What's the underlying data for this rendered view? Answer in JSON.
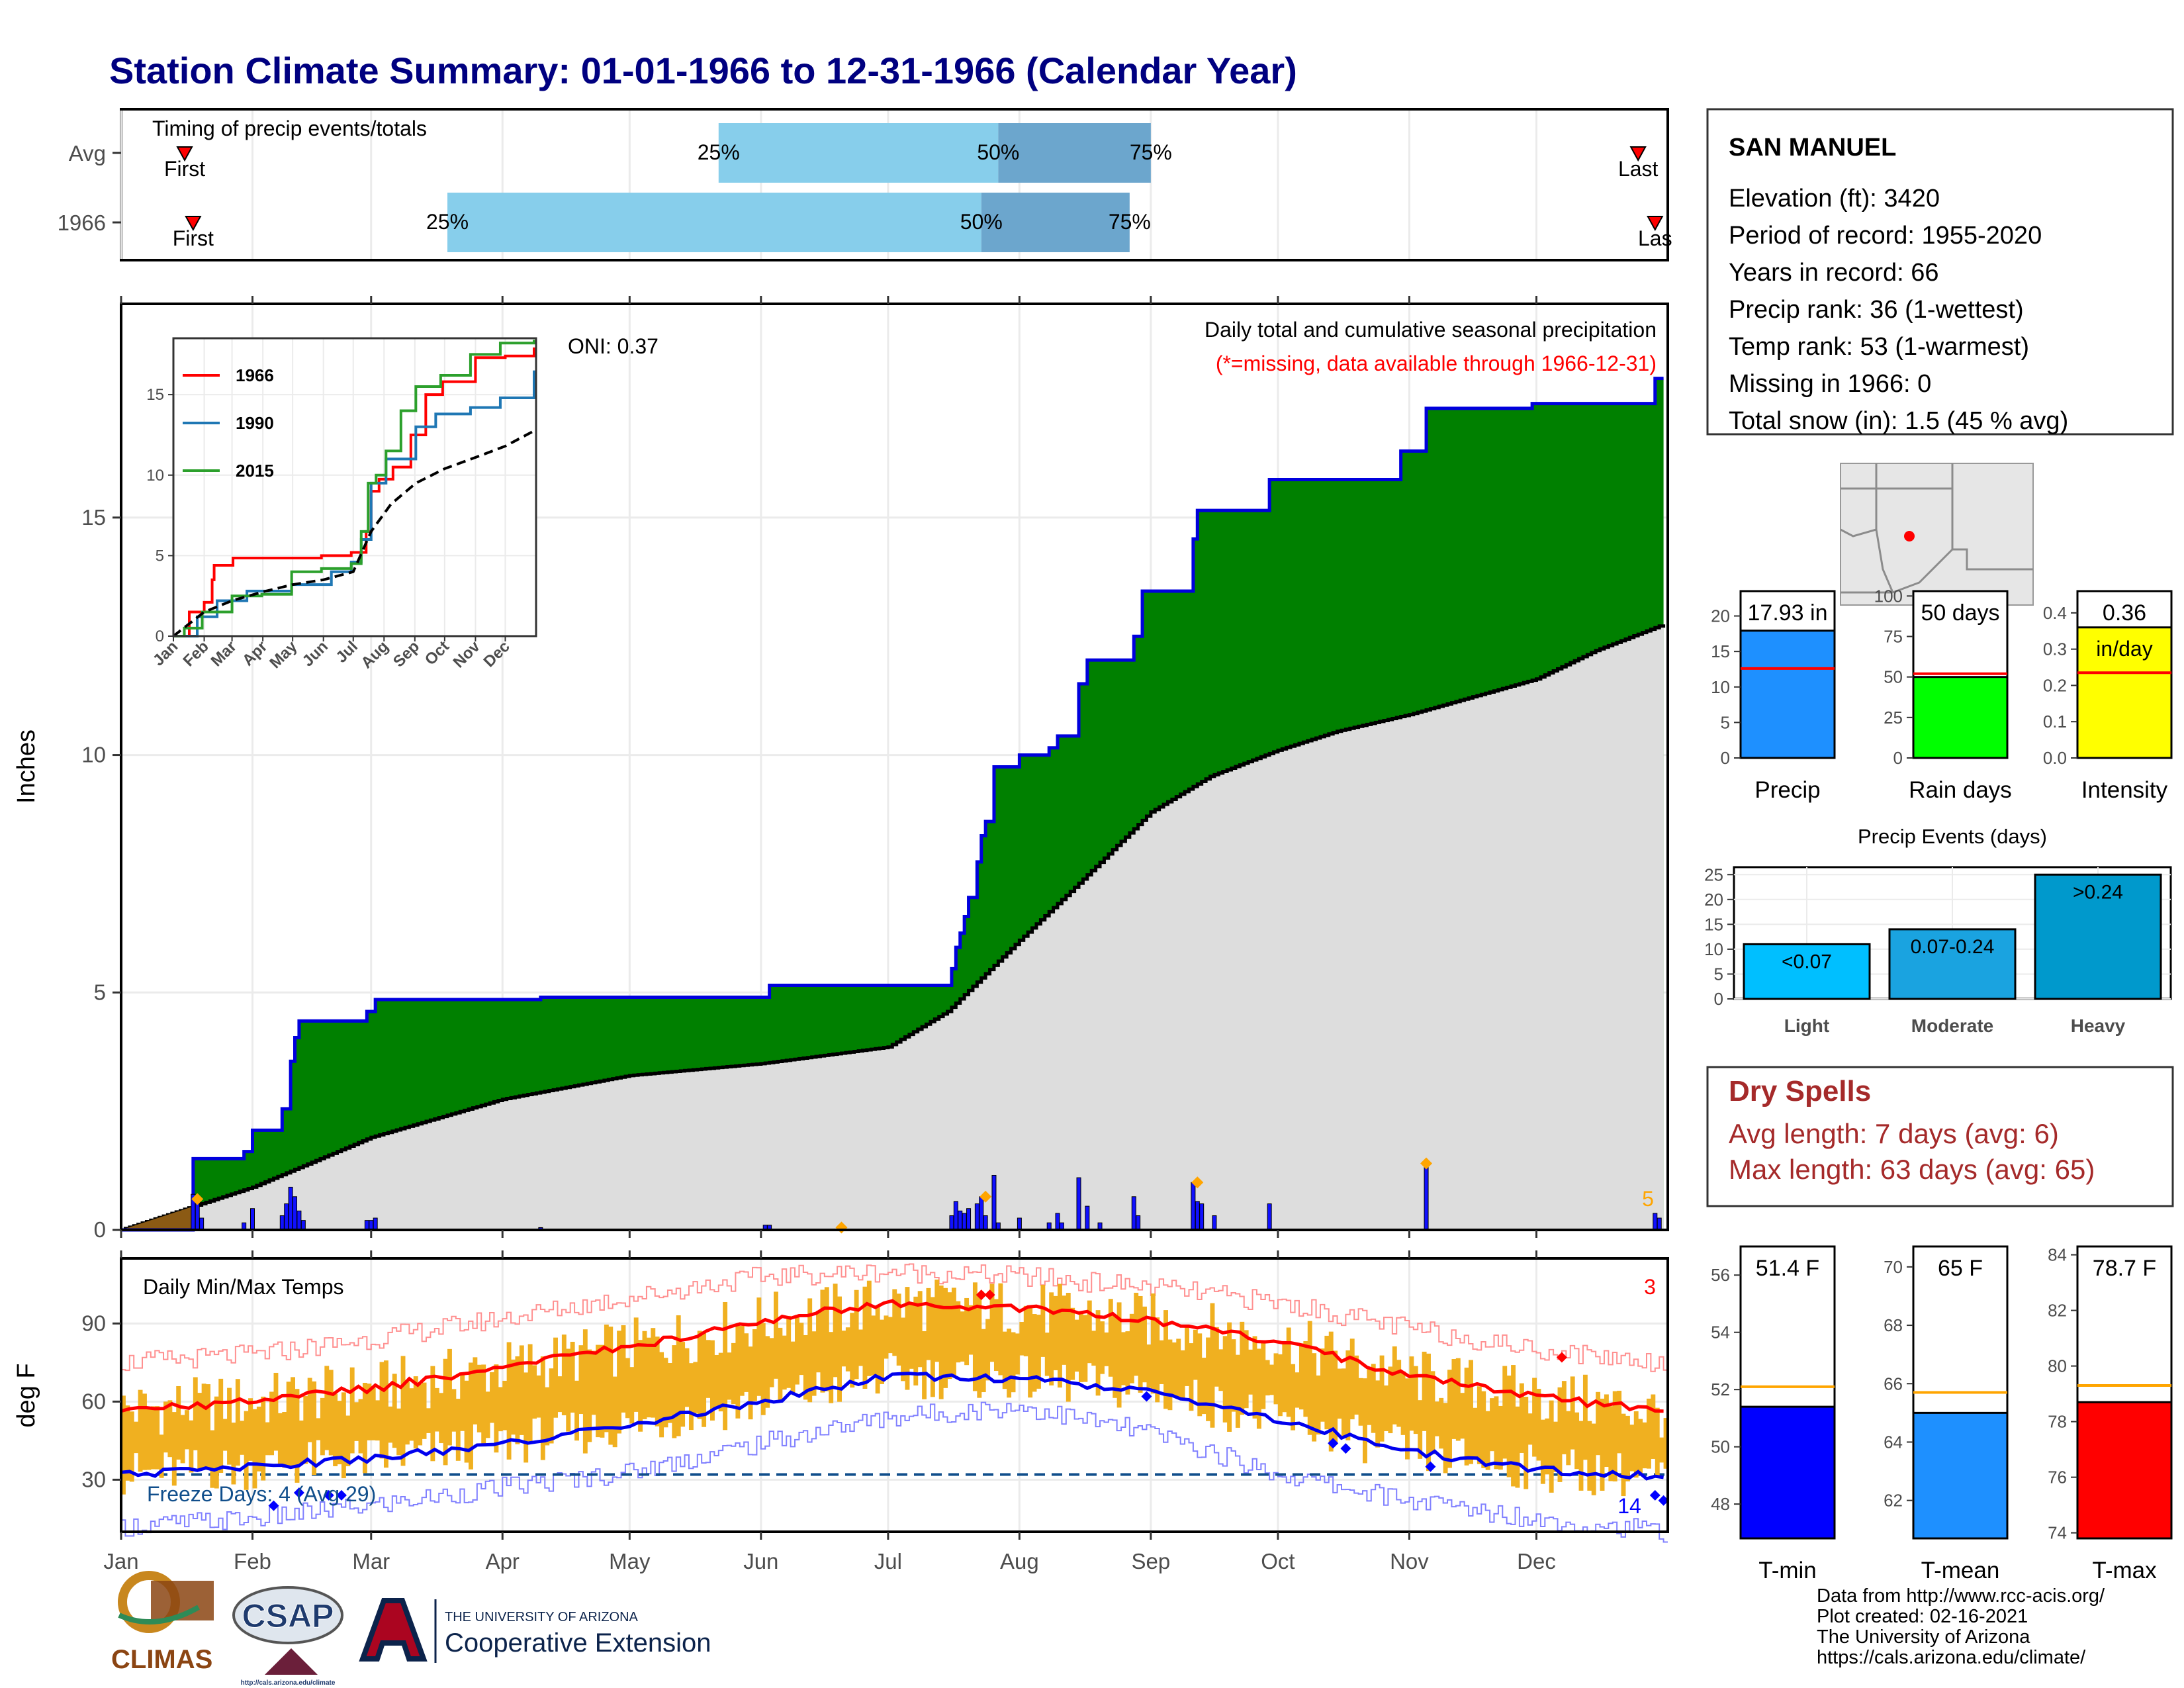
{
  "page": {
    "title": "Station Climate Summary: 01-01-1966 to 12-31-1966 (Calendar Year)",
    "months": [
      "Jan",
      "Feb",
      "Mar",
      "Apr",
      "May",
      "Jun",
      "Jul",
      "Aug",
      "Sep",
      "Oct",
      "Nov",
      "Dec"
    ],
    "footer": [
      "Data from http://www.rcc-acis.org/",
      "Plot created: 02-16-2021",
      "The University of Arizona",
      "https://cals.arizona.edu/climate/"
    ],
    "logos": {
      "climas": "CLIMAS",
      "csap": "CSAP",
      "csap_url": "http://cals.arizona.edu/climate",
      "ua_line1": "THE UNIVERSITY OF ARIZONA",
      "ua_line2": "Cooperative Extension"
    }
  },
  "station": {
    "name": "SAN MANUEL",
    "lines": [
      "Elevation (ft): 3420",
      "Period of record: 1955-2020",
      "Years in record: 66",
      "Precip rank: 36 (1-wettest)",
      "Temp rank: 53 (1-warmest)",
      "Missing in 1966: 0",
      "Total snow (in): 1.5 (45 % avg)"
    ]
  },
  "dry_spells": {
    "title": "Dry Spells",
    "avg_length": "Avg length: 7 days (avg: 6)",
    "max_length": "Max length: 63 days (avg: 65)"
  },
  "colors": {
    "title": "#000080",
    "observed_fill": "#008000",
    "observed_line": "#0000dd",
    "climo_fill": "#dddddd",
    "daily_bars": "#1010ff",
    "temp_bars": "#f0b020",
    "tmax_line": "#ff0000",
    "tmin_line": "#0000ee",
    "timing_light": "#87ceeb",
    "timing_dark": "#6ca6cd",
    "dry_spell": "#a52a2a",
    "orange": "#ffa500"
  },
  "chart_data": [
    {
      "id": "timing",
      "type": "bar",
      "title": "Timing of precip events/totals",
      "categories": [
        "Avg",
        "1966"
      ],
      "rows": [
        {
          "label": "Avg",
          "first": "Jan 16",
          "p25": "May 22",
          "p50": "Jul 27",
          "p75": "Sep 01",
          "last": "Dec 25",
          "first_label": "First",
          "last_label": "Last"
        },
        {
          "label": "1966",
          "first": "Jan 18",
          "p25": "Mar 19",
          "p50": "Jul 23",
          "p75": "Aug 27",
          "last": "Dec 29",
          "first_label": "First",
          "last_label": "Las"
        }
      ],
      "percent_labels": [
        "25%",
        "50%",
        "75%"
      ]
    },
    {
      "id": "precip",
      "type": "area",
      "title": "Daily total and cumulative seasonal precipitation",
      "subtitle": "(*=missing, data available through 1966-12-31)",
      "oni": "ONI: 0.37",
      "ylabel": "Inches",
      "ylim": [
        0,
        19.5
      ],
      "yticks": [
        0,
        5,
        10,
        15
      ],
      "annotation_count": "5",
      "cumulative_1966_steps": [
        [
          "Jan 01",
          0
        ],
        [
          "Jan 18",
          1.5
        ],
        [
          "Jan 30",
          1.65
        ],
        [
          "Feb 01",
          2.1
        ],
        [
          "Feb 08",
          2.55
        ],
        [
          "Feb 10",
          3.55
        ],
        [
          "Feb 11",
          4.05
        ],
        [
          "Feb 12",
          4.4
        ],
        [
          "Feb 28",
          4.6
        ],
        [
          "Mar 02",
          4.85
        ],
        [
          "Apr 10",
          4.9
        ],
        [
          "Jun 03",
          5.15
        ],
        [
          "Jul 16",
          5.5
        ],
        [
          "Jul 17",
          5.95
        ],
        [
          "Jul 18",
          6.25
        ],
        [
          "Jul 19",
          6.6
        ],
        [
          "Jul 20",
          7.0
        ],
        [
          "Jul 22",
          7.75
        ],
        [
          "Jul 23",
          8.3
        ],
        [
          "Jul 24",
          8.6
        ],
        [
          "Jul 26",
          9.75
        ],
        [
          "Aug 01",
          10.0
        ],
        [
          "Aug 08",
          10.15
        ],
        [
          "Aug 10",
          10.4
        ],
        [
          "Aug 15",
          11.5
        ],
        [
          "Aug 17",
          12.0
        ],
        [
          "Aug 28",
          12.5
        ],
        [
          "Aug 30",
          13.45
        ],
        [
          "Sep 11",
          14.55
        ],
        [
          "Sep 12",
          15.15
        ],
        [
          "Sep 29",
          15.8
        ],
        [
          "Oct 30",
          16.4
        ],
        [
          "Nov 05",
          17.3
        ],
        [
          "Nov 30",
          17.4
        ],
        [
          "Dec 29",
          17.93
        ]
      ],
      "climo_avg_points": [
        [
          "Jan 01",
          0
        ],
        [
          "Feb 01",
          0.9
        ],
        [
          "Mar 01",
          1.95
        ],
        [
          "Apr 01",
          2.75
        ],
        [
          "May 01",
          3.25
        ],
        [
          "Jun 01",
          3.5
        ],
        [
          "Jul 01",
          3.85
        ],
        [
          "Jul 15",
          4.6
        ],
        [
          "Aug 01",
          6.1
        ],
        [
          "Aug 15",
          7.3
        ],
        [
          "Sep 01",
          8.8
        ],
        [
          "Sep 15",
          9.55
        ],
        [
          "Oct 01",
          10.1
        ],
        [
          "Oct 15",
          10.5
        ],
        [
          "Nov 01",
          10.85
        ],
        [
          "Nov 15",
          11.2
        ],
        [
          "Dec 01",
          11.6
        ],
        [
          "Dec 15",
          12.2
        ],
        [
          "Dec 31",
          12.75
        ]
      ],
      "daily_bars": [
        [
          "Jan 18",
          0.75
        ],
        [
          "Jan 19",
          0.65
        ],
        [
          "Jan 20",
          0.25
        ],
        [
          "Jan 30",
          0.15
        ],
        [
          "Feb 01",
          0.45
        ],
        [
          "Feb 08",
          0.3
        ],
        [
          "Feb 09",
          0.55
        ],
        [
          "Feb 10",
          0.9
        ],
        [
          "Feb 11",
          0.7
        ],
        [
          "Feb 12",
          0.4
        ],
        [
          "Feb 13",
          0.2
        ],
        [
          "Feb 28",
          0.2
        ],
        [
          "Mar 01",
          0.2
        ],
        [
          "Mar 02",
          0.25
        ],
        [
          "Apr 10",
          0.05
        ],
        [
          "Jun 02",
          0.1
        ],
        [
          "Jun 03",
          0.1
        ],
        [
          "Jul 16",
          0.3
        ],
        [
          "Jul 17",
          0.6
        ],
        [
          "Jul 18",
          0.4
        ],
        [
          "Jul 19",
          0.35
        ],
        [
          "Jul 20",
          0.45
        ],
        [
          "Jul 22",
          0.55
        ],
        [
          "Jul 23",
          0.7
        ],
        [
          "Jul 24",
          0.3
        ],
        [
          "Jul 26",
          1.15
        ],
        [
          "Jul 27",
          0.15
        ],
        [
          "Aug 01",
          0.25
        ],
        [
          "Aug 08",
          0.15
        ],
        [
          "Aug 10",
          0.35
        ],
        [
          "Aug 11",
          0.15
        ],
        [
          "Aug 15",
          1.1
        ],
        [
          "Aug 17",
          0.5
        ],
        [
          "Aug 20",
          0.15
        ],
        [
          "Aug 28",
          0.7
        ],
        [
          "Aug 29",
          0.3
        ],
        [
          "Sep 11",
          1.0
        ],
        [
          "Sep 12",
          0.6
        ],
        [
          "Sep 13",
          0.55
        ],
        [
          "Sep 16",
          0.3
        ],
        [
          "Sep 29",
          0.55
        ],
        [
          "Nov 05",
          1.35
        ],
        [
          "Dec 29",
          0.35
        ],
        [
          "Dec 30",
          0.25
        ]
      ],
      "orange_marks": [
        [
          "Jan 19",
          0.65
        ],
        [
          "Jun 20",
          0.05
        ],
        [
          "Jul 24",
          0.7
        ],
        [
          "Sep 12",
          1.0
        ],
        [
          "Nov 05",
          1.4
        ]
      ]
    },
    {
      "id": "inset",
      "type": "line",
      "xlabels": [
        "Jan",
        "Feb",
        "Mar",
        "Apr",
        "May",
        "Jun",
        "Jul",
        "Aug",
        "Sep",
        "Oct",
        "Nov",
        "Dec"
      ],
      "ylim": [
        0,
        18.5
      ],
      "yticks": [
        0,
        5,
        10,
        15
      ],
      "series": [
        {
          "name": "1966",
          "color": "#ff0000",
          "points": [
            [
              1,
              0
            ],
            [
              17,
              1.5
            ],
            [
              32,
              2.1
            ],
            [
              40,
              3.5
            ],
            [
              42,
              4.4
            ],
            [
              61,
              4.85
            ],
            [
              150,
              5.0
            ],
            [
              180,
              5.2
            ],
            [
              195,
              6.5
            ],
            [
              200,
              9.0
            ],
            [
              208,
              9.75
            ],
            [
              222,
              10.5
            ],
            [
              240,
              12.5
            ],
            [
              255,
              15.0
            ],
            [
              272,
              15.8
            ],
            [
              305,
              17.3
            ],
            [
              335,
              17.4
            ],
            [
              364,
              17.93
            ]
          ]
        },
        {
          "name": "1990",
          "color": "#1f77b4",
          "points": [
            [
              1,
              0
            ],
            [
              25,
              1.2
            ],
            [
              45,
              2.2
            ],
            [
              75,
              2.8
            ],
            [
              120,
              3.2
            ],
            [
              160,
              4.0
            ],
            [
              180,
              4.6
            ],
            [
              190,
              6.0
            ],
            [
              200,
              9.5
            ],
            [
              215,
              11.0
            ],
            [
              245,
              13.0
            ],
            [
              265,
              13.8
            ],
            [
              300,
              14.2
            ],
            [
              330,
              14.8
            ],
            [
              364,
              16.5
            ]
          ]
        },
        {
          "name": "2015",
          "color": "#2ca02c",
          "points": [
            [
              1,
              0
            ],
            [
              12,
              0.5
            ],
            [
              30,
              1.5
            ],
            [
              60,
              2.5
            ],
            [
              90,
              2.6
            ],
            [
              120,
              4.0
            ],
            [
              150,
              4.2
            ],
            [
              180,
              4.5
            ],
            [
              190,
              6.5
            ],
            [
              197,
              9.5
            ],
            [
              205,
              10.0
            ],
            [
              215,
              11.5
            ],
            [
              230,
              14.0
            ],
            [
              245,
              15.5
            ],
            [
              270,
              16.2
            ],
            [
              300,
              17.5
            ],
            [
              330,
              18.2
            ],
            [
              364,
              18.4
            ]
          ]
        },
        {
          "name": "avg",
          "color": "#000000",
          "dash": true,
          "points": [
            [
              1,
              0
            ],
            [
              32,
              1.5
            ],
            [
              60,
              2.2
            ],
            [
              91,
              2.75
            ],
            [
              121,
              3.2
            ],
            [
              152,
              3.5
            ],
            [
              182,
              4.0
            ],
            [
              200,
              6.5
            ],
            [
              220,
              8.2
            ],
            [
              245,
              9.5
            ],
            [
              274,
              10.4
            ],
            [
              305,
              11.1
            ],
            [
              335,
              11.8
            ],
            [
              364,
              12.75
            ]
          ]
        }
      ]
    },
    {
      "id": "temps",
      "type": "bar",
      "title": "Daily Min/Max Temps",
      "ylabel": "deg F",
      "ylim": [
        10,
        115
      ],
      "yticks": [
        30,
        60,
        90
      ],
      "freeze_label": "Freeze Days: 4 (Avg 29)",
      "freeze_line": 32,
      "count_hot": "3",
      "count_cold": "14",
      "avg_tmax_points": [
        [
          1,
          57
        ],
        [
          32,
          60
        ],
        [
          60,
          65
        ],
        [
          91,
          73
        ],
        [
          121,
          81
        ],
        [
          152,
          91
        ],
        [
          182,
          98
        ],
        [
          213,
          96
        ],
        [
          244,
          91
        ],
        [
          274,
          83
        ],
        [
          305,
          70
        ],
        [
          335,
          62
        ],
        [
          365,
          56
        ]
      ],
      "avg_tmin_points": [
        [
          1,
          32
        ],
        [
          32,
          35
        ],
        [
          60,
          38
        ],
        [
          91,
          44
        ],
        [
          121,
          51
        ],
        [
          152,
          60
        ],
        [
          182,
          70
        ],
        [
          213,
          69
        ],
        [
          244,
          64
        ],
        [
          274,
          53
        ],
        [
          305,
          41
        ],
        [
          335,
          34
        ],
        [
          365,
          31
        ]
      ],
      "record_max_points": [
        [
          1,
          75
        ],
        [
          32,
          78
        ],
        [
          60,
          84
        ],
        [
          91,
          92
        ],
        [
          121,
          100
        ],
        [
          152,
          108
        ],
        [
          182,
          110
        ],
        [
          213,
          108
        ],
        [
          244,
          104
        ],
        [
          274,
          98
        ],
        [
          305,
          88
        ],
        [
          335,
          80
        ],
        [
          365,
          75
        ]
      ],
      "record_min_points": [
        [
          1,
          12
        ],
        [
          32,
          15
        ],
        [
          60,
          20
        ],
        [
          91,
          27
        ],
        [
          121,
          33
        ],
        [
          152,
          44
        ],
        [
          182,
          54
        ],
        [
          213,
          58
        ],
        [
          244,
          48
        ],
        [
          274,
          32
        ],
        [
          305,
          22
        ],
        [
          335,
          15
        ],
        [
          365,
          10
        ]
      ]
    },
    {
      "id": "summary_precip",
      "type": "bar",
      "panels": [
        {
          "name": "Precip",
          "value": 17.93,
          "label": "17.93 in",
          "unit_label": "",
          "avg": 12.6,
          "ylim": [
            0,
            23.5
          ],
          "yticks": [
            0,
            5,
            10,
            15,
            20
          ],
          "color": "#1e90ff"
        },
        {
          "name": "Rain days",
          "value": 50,
          "label": "50 days",
          "unit_label": "",
          "avg": 52,
          "ylim": [
            0,
            103
          ],
          "yticks": [
            0,
            25,
            50,
            75,
            100
          ],
          "color": "#00ff00"
        },
        {
          "name": "Intensity",
          "value": 0.36,
          "label": "0.36",
          "unit_label": "in/day",
          "avg": 0.235,
          "ylim": [
            0,
            0.46
          ],
          "yticks": [
            0.0,
            0.1,
            0.2,
            0.3,
            0.4
          ],
          "color": "#ffff00"
        }
      ]
    },
    {
      "id": "precip_events",
      "type": "bar",
      "title": "Precip Events (days)",
      "categories": [
        "Light",
        "Moderate",
        "Heavy"
      ],
      "bar_labels": [
        "<0.07",
        "0.07-0.24",
        ">0.24"
      ],
      "values": [
        11,
        14,
        25
      ],
      "ylim": [
        0,
        26.5
      ],
      "yticks": [
        0,
        5,
        10,
        15,
        20,
        25
      ],
      "colors": [
        "#00bfff",
        "#1aa3e0",
        "#0099cc"
      ]
    },
    {
      "id": "summary_temp",
      "type": "bar",
      "panels": [
        {
          "name": "T-min",
          "value": 51.4,
          "label": "51.4 F",
          "avg": 52.1,
          "ylim": [
            46.8,
            57.0
          ],
          "yticks": [
            48,
            50,
            52,
            54,
            56
          ],
          "color": "#0000ff"
        },
        {
          "name": "T-mean",
          "value": 65,
          "label": "65 F",
          "avg": 65.7,
          "ylim": [
            60.7,
            70.7
          ],
          "yticks": [
            62,
            64,
            66,
            68,
            70
          ],
          "color": "#1e90ff"
        },
        {
          "name": "T-max",
          "value": 78.7,
          "label": "78.7 F",
          "avg": 79.3,
          "ylim": [
            73.8,
            84.3
          ],
          "yticks": [
            74,
            76,
            78,
            80,
            82,
            84
          ],
          "color": "#ff0000"
        }
      ]
    }
  ]
}
